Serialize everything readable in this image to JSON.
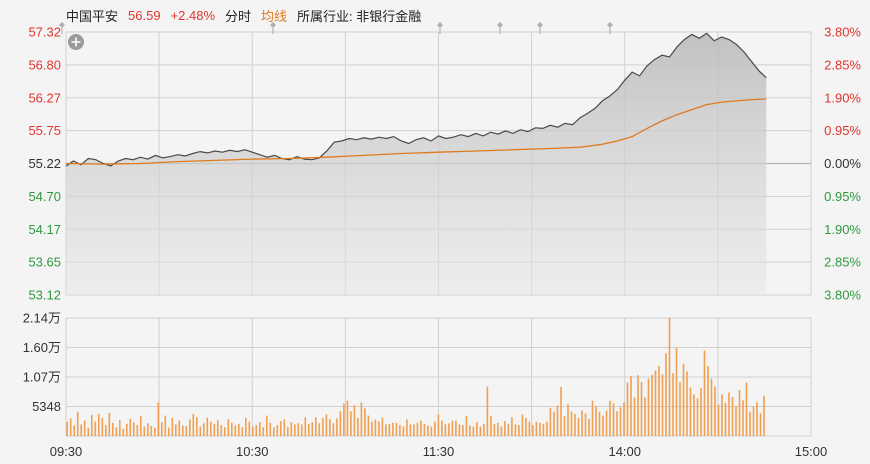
{
  "header": {
    "stock_name": "中国平安",
    "price": "56.59",
    "change_pct": "+2.48%",
    "timeshare_label": "分时",
    "avg_label": "均线",
    "industry": "所属行业: 非银行金融"
  },
  "icons": {
    "add": "plus-circle-icon",
    "event_marker": "event-pin-icon"
  },
  "colors": {
    "up": "#e0352f",
    "down": "#2e9a3e",
    "price_line": "#4a4a4a",
    "avg_line": "#e07a1f",
    "volume": "#f0a050",
    "grid": "#d0d0d0",
    "text": "#333333"
  },
  "chart_data": {
    "type": "line",
    "ylim": [
      53.12,
      57.32
    ],
    "base_price": 55.22,
    "left_ticks": [
      "57.32",
      "56.80",
      "56.27",
      "55.75",
      "55.22",
      "54.70",
      "54.17",
      "53.65",
      "53.12"
    ],
    "right_ticks": [
      "3.80%",
      "2.85%",
      "1.90%",
      "0.95%",
      "0.00%",
      "0.95%",
      "1.90%",
      "2.85%",
      "3.80%"
    ],
    "x_ticks": [
      "09:30",
      "10:30",
      "11:30",
      "14:00",
      "15:00"
    ],
    "price_series": [
      [
        0,
        55.18
      ],
      [
        3,
        55.26
      ],
      [
        6,
        55.2
      ],
      [
        9,
        55.3
      ],
      [
        12,
        55.28
      ],
      [
        15,
        55.22
      ],
      [
        18,
        55.18
      ],
      [
        21,
        55.26
      ],
      [
        24,
        55.3
      ],
      [
        27,
        55.28
      ],
      [
        30,
        55.32
      ],
      [
        33,
        55.29
      ],
      [
        36,
        55.35
      ],
      [
        39,
        55.31
      ],
      [
        42,
        55.33
      ],
      [
        45,
        55.36
      ],
      [
        48,
        55.34
      ],
      [
        51,
        55.38
      ],
      [
        54,
        55.41
      ],
      [
        57,
        55.39
      ],
      [
        60,
        55.42
      ],
      [
        63,
        55.4
      ],
      [
        66,
        55.43
      ],
      [
        69,
        55.41
      ],
      [
        72,
        55.44
      ],
      [
        75,
        55.4
      ],
      [
        78,
        55.36
      ],
      [
        81,
        55.32
      ],
      [
        84,
        55.35
      ],
      [
        87,
        55.3
      ],
      [
        90,
        55.28
      ],
      [
        93,
        55.33
      ],
      [
        96,
        55.29
      ],
      [
        99,
        55.28
      ],
      [
        102,
        55.31
      ],
      [
        105,
        55.42
      ],
      [
        108,
        55.56
      ],
      [
        111,
        55.58
      ],
      [
        114,
        55.62
      ],
      [
        117,
        55.6
      ],
      [
        120,
        55.63
      ],
      [
        123,
        55.61
      ],
      [
        126,
        55.64
      ],
      [
        129,
        55.62
      ],
      [
        132,
        55.65
      ],
      [
        135,
        55.58
      ],
      [
        138,
        55.54
      ],
      [
        141,
        55.6
      ],
      [
        144,
        55.63
      ],
      [
        147,
        55.58
      ],
      [
        150,
        55.66
      ],
      [
        153,
        55.62
      ],
      [
        156,
        55.64
      ],
      [
        159,
        55.68
      ],
      [
        162,
        55.65
      ],
      [
        165,
        55.7
      ],
      [
        168,
        55.66
      ],
      [
        171,
        55.72
      ],
      [
        174,
        55.69
      ],
      [
        177,
        55.74
      ],
      [
        180,
        55.7
      ],
      [
        183,
        55.76
      ],
      [
        186,
        55.73
      ],
      [
        189,
        55.79
      ],
      [
        192,
        55.78
      ],
      [
        195,
        55.83
      ],
      [
        198,
        55.8
      ],
      [
        201,
        55.86
      ],
      [
        204,
        55.84
      ],
      [
        207,
        55.95
      ],
      [
        210,
        56.02
      ],
      [
        213,
        56.1
      ],
      [
        216,
        56.22
      ],
      [
        219,
        56.3
      ],
      [
        222,
        56.4
      ],
      [
        225,
        56.55
      ],
      [
        228,
        56.68
      ],
      [
        231,
        56.62
      ],
      [
        234,
        56.78
      ],
      [
        237,
        56.88
      ],
      [
        240,
        56.95
      ],
      [
        243,
        56.92
      ],
      [
        246,
        57.08
      ],
      [
        249,
        57.2
      ],
      [
        252,
        57.28
      ],
      [
        255,
        57.22
      ],
      [
        258,
        57.3
      ],
      [
        261,
        57.18
      ],
      [
        264,
        57.24
      ],
      [
        267,
        57.2
      ],
      [
        270,
        57.12
      ],
      [
        273,
        57.0
      ],
      [
        276,
        56.85
      ],
      [
        279,
        56.7
      ],
      [
        282,
        56.59
      ]
    ],
    "avg_series": [
      [
        0,
        55.22
      ],
      [
        15,
        55.21
      ],
      [
        30,
        55.22
      ],
      [
        45,
        55.25
      ],
      [
        60,
        55.27
      ],
      [
        75,
        55.29
      ],
      [
        90,
        55.3
      ],
      [
        105,
        55.32
      ],
      [
        120,
        55.35
      ],
      [
        135,
        55.38
      ],
      [
        150,
        55.4
      ],
      [
        165,
        55.42
      ],
      [
        180,
        55.44
      ],
      [
        195,
        55.46
      ],
      [
        207,
        55.48
      ],
      [
        215,
        55.52
      ],
      [
        222,
        55.58
      ],
      [
        228,
        55.65
      ],
      [
        234,
        55.78
      ],
      [
        240,
        55.9
      ],
      [
        246,
        56.0
      ],
      [
        252,
        56.08
      ],
      [
        258,
        56.16
      ],
      [
        264,
        56.2
      ],
      [
        270,
        56.22
      ],
      [
        276,
        56.24
      ],
      [
        282,
        56.25
      ]
    ],
    "volume": {
      "ylim": [
        0,
        21400
      ],
      "ticks": [
        "2.14万",
        "1.60万",
        "1.07万",
        "5348"
      ],
      "values": [
        2600,
        3200,
        1900,
        4400,
        2100,
        2800,
        1500,
        3800,
        2600,
        4000,
        3300,
        2000,
        4200,
        2400,
        1600,
        2900,
        1300,
        2200,
        3100,
        2500,
        2000,
        3600,
        1700,
        2300,
        1800,
        1500,
        6100,
        2500,
        3700,
        1500,
        3300,
        2100,
        2800,
        1900,
        1800,
        3000,
        4000,
        3400,
        1700,
        2300,
        3300,
        2600,
        2200,
        2900,
        2000,
        1600,
        3000,
        2400,
        1900,
        2200,
        1600,
        3300,
        2600,
        1700,
        2000,
        2500,
        1600,
        3700,
        2400,
        1600,
        2000,
        2700,
        3000,
        1600,
        2500,
        2100,
        2300,
        2100,
        3400,
        2200,
        2500,
        3400,
        2300,
        3300,
        3900,
        3100,
        2300,
        3200,
        4500,
        5900,
        6400,
        4500,
        5600,
        3300,
        6100,
        5000,
        3700,
        2600,
        3000,
        2700,
        3300,
        2100,
        2200,
        2400,
        2400,
        2000,
        1700,
        3000,
        2100,
        2100,
        2400,
        2800,
        2200,
        1900,
        1700,
        2600,
        3900,
        2800,
        2100,
        2300,
        2800,
        2800,
        2100,
        2000,
        3600,
        1900,
        1700,
        2500,
        1700,
        2200,
        9000,
        3600,
        2200,
        2400,
        1700,
        2700,
        2200,
        3400,
        2100,
        2000,
        3900,
        3300,
        2600,
        2000,
        2600,
        2400,
        2200,
        2600,
        5100,
        4400,
        5500,
        8900,
        3600,
        5800,
        4400,
        4000,
        3300,
        4600,
        4100,
        3100,
        6400,
        5400,
        4400,
        3700,
        4600,
        6400,
        5900,
        4500,
        5200,
        6100,
        9700,
        10900,
        7000,
        11000,
        9800,
        7000,
        10400,
        11100,
        11900,
        12700,
        11200,
        15000,
        21400,
        11400,
        16000,
        9800,
        13100,
        11700,
        8800,
        7500,
        6800,
        8700,
        15500,
        12700,
        10400,
        9000,
        5700,
        7500,
        6000,
        7900,
        7100,
        5400,
        8300,
        6500,
        9700,
        4400,
        5300,
        6100,
        4100,
        7300
      ]
    }
  }
}
